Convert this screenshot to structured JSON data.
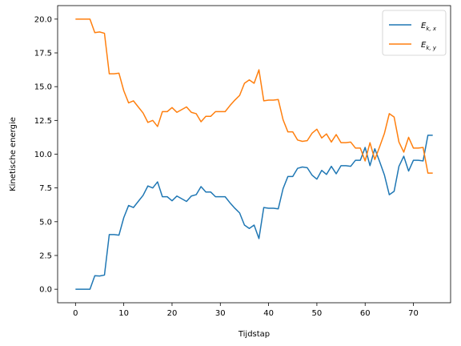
{
  "chart_data": {
    "type": "line",
    "title": "",
    "xlabel": "Tijdstap",
    "ylabel": "Kinetische energie",
    "xlim": [
      -3.7,
      77.7
    ],
    "ylim": [
      -1.0,
      21.0
    ],
    "xticks": [
      0,
      10,
      20,
      30,
      40,
      50,
      60,
      70
    ],
    "yticks": [
      0.0,
      2.5,
      5.0,
      7.5,
      10.0,
      12.5,
      15.0,
      17.5,
      20.0
    ],
    "ytick_labels": [
      "0.0",
      "2.5",
      "5.0",
      "7.5",
      "10.0",
      "12.5",
      "15.0",
      "17.5",
      "20.0"
    ],
    "legend_position": "top-right",
    "grid": false,
    "x": [
      0,
      1,
      2,
      3,
      4,
      5,
      6,
      7,
      8,
      9,
      10,
      11,
      12,
      13,
      14,
      15,
      16,
      17,
      18,
      19,
      20,
      21,
      22,
      23,
      24,
      25,
      26,
      27,
      28,
      29,
      30,
      31,
      32,
      33,
      34,
      35,
      36,
      37,
      38,
      39,
      40,
      41,
      42,
      43,
      44,
      45,
      46,
      47,
      48,
      49,
      50,
      51,
      52,
      53,
      54,
      55,
      56,
      57,
      58,
      59,
      60,
      61,
      62,
      63,
      64,
      65,
      66,
      67,
      68,
      69,
      70,
      71,
      72,
      73,
      74
    ],
    "series": [
      {
        "name": "E_{k,x}",
        "label_main": "E",
        "label_sub": "k, x",
        "color": "#1f77b4",
        "values": [
          0.0,
          0.0,
          0.0,
          0.0,
          1.0,
          0.98,
          1.05,
          4.05,
          4.05,
          4.0,
          5.3,
          6.2,
          6.05,
          6.5,
          6.95,
          7.65,
          7.5,
          7.95,
          6.85,
          6.85,
          6.55,
          6.9,
          6.7,
          6.5,
          6.9,
          7.0,
          7.6,
          7.2,
          7.2,
          6.85,
          6.85,
          6.85,
          6.4,
          6.0,
          5.65,
          4.75,
          4.5,
          4.75,
          3.75,
          6.05,
          6.0,
          6.0,
          5.95,
          7.45,
          8.35,
          8.35,
          8.95,
          9.05,
          9.0,
          8.45,
          8.15,
          8.8,
          8.5,
          9.1,
          8.55,
          9.15,
          9.15,
          9.1,
          9.55,
          9.55,
          10.5,
          9.15,
          10.4,
          9.45,
          8.45,
          7.0,
          7.25,
          9.1,
          9.85,
          8.75,
          9.55,
          9.55,
          9.5,
          11.4,
          11.4
        ]
      },
      {
        "name": "E_{k,y}",
        "label_main": "E",
        "label_sub": "k, y",
        "color": "#ff7f0e",
        "values": [
          20.0,
          20.0,
          20.0,
          20.0,
          19.0,
          19.05,
          18.95,
          15.95,
          15.95,
          16.0,
          14.7,
          13.8,
          13.95,
          13.5,
          13.05,
          12.35,
          12.5,
          12.05,
          13.15,
          13.15,
          13.45,
          13.1,
          13.3,
          13.5,
          13.1,
          13.0,
          12.4,
          12.8,
          12.8,
          13.15,
          13.15,
          13.15,
          13.6,
          14.0,
          14.35,
          15.25,
          15.5,
          15.25,
          16.25,
          13.95,
          14.0,
          14.0,
          14.05,
          12.55,
          11.65,
          11.65,
          11.05,
          10.95,
          11.0,
          11.55,
          11.85,
          11.2,
          11.5,
          10.9,
          11.45,
          10.85,
          10.85,
          10.9,
          10.45,
          10.45,
          9.5,
          10.85,
          9.6,
          10.55,
          11.55,
          13.0,
          12.75,
          10.9,
          10.15,
          11.25,
          10.45,
          10.45,
          10.5,
          8.6,
          8.6
        ]
      }
    ]
  }
}
